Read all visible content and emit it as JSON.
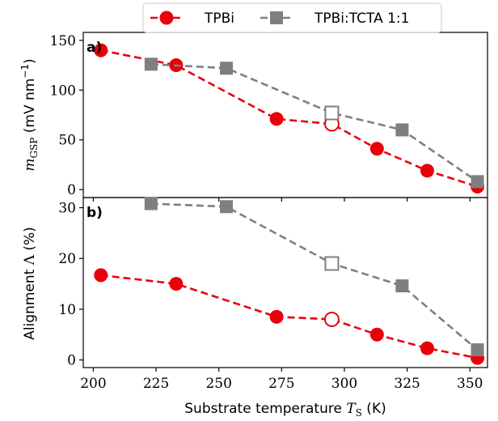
{
  "chart_data": [
    {
      "type": "line",
      "panel_label": "a)",
      "ylabel": "m_GSP (mV nm^-1)",
      "ylim": [
        -8,
        158
      ],
      "yticks": [
        0,
        50,
        100,
        150
      ],
      "x": [
        200,
        225,
        250,
        275,
        300,
        325,
        350
      ],
      "series": [
        {
          "name": "TPBi",
          "color": "#e8000b",
          "marker": "circle",
          "x": [
            203,
            233,
            273,
            295,
            313,
            333,
            353
          ],
          "y": [
            140,
            125,
            71,
            66,
            41,
            19,
            3
          ],
          "open_marker_index": 3
        },
        {
          "name": "TPBi:TCTA 1:1",
          "color": "#7f7f7f",
          "marker": "square",
          "x": [
            223,
            253,
            295,
            323,
            353
          ],
          "y": [
            126,
            122,
            77,
            60,
            8
          ],
          "open_marker_index": 2
        }
      ]
    },
    {
      "type": "line",
      "panel_label": "b)",
      "ylabel": "Alignment Λ (%)",
      "xlabel": "Substrate temperature T_S (K)",
      "ylim": [
        -1.5,
        32
      ],
      "xlim": [
        196,
        357
      ],
      "yticks": [
        0,
        10,
        20,
        30
      ],
      "xticks": [
        200,
        225,
        250,
        275,
        300,
        325,
        350
      ],
      "series": [
        {
          "name": "TPBi",
          "color": "#e8000b",
          "marker": "circle",
          "x": [
            203,
            233,
            273,
            295,
            313,
            333,
            353
          ],
          "y": [
            16.7,
            15.0,
            8.5,
            8.0,
            5.0,
            2.3,
            0.4
          ],
          "open_marker_index": 3
        },
        {
          "name": "TPBi:TCTA 1:1",
          "color": "#7f7f7f",
          "marker": "square",
          "x": [
            223,
            253,
            295,
            323,
            353
          ],
          "y": [
            30.8,
            30.2,
            19.0,
            14.6,
            2.0
          ],
          "open_marker_index": 2
        }
      ]
    }
  ],
  "legend": {
    "placement": "top-center",
    "entries": [
      "TPBi",
      "TPBi:TCTA 1:1"
    ]
  }
}
